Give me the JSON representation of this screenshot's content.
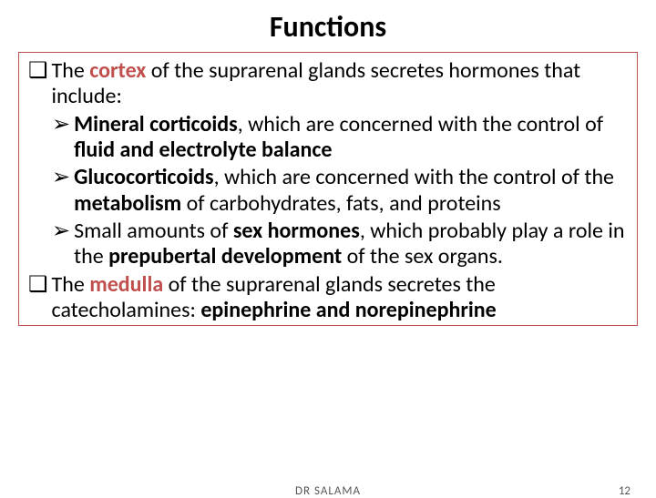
{
  "title": {
    "text": "Functions",
    "fontsize": 32,
    "weight": 700
  },
  "box": {
    "border_color": "#c0504d"
  },
  "body": {
    "fontsize": 24,
    "lineheight": 1.18
  },
  "bullets": {
    "square": "❑",
    "chevron": "➢"
  },
  "colors": {
    "cortex": "#c0504d",
    "medulla": "#c0504d",
    "black": "#000000"
  },
  "p1": {
    "pre": "The ",
    "cortex": "cortex",
    "post": " of the suprarenal glands secretes hormones that include:"
  },
  "s1": {
    "lead": "Mineral corticoids",
    "mid": ", which are concerned with the control of ",
    "bold2": "fluid and electrolyte balance"
  },
  "s2": {
    "lead": "Glucocorticoids",
    "mid": ", which are concerned with the control of the ",
    "bold2": "metabolism",
    "post": " of carbohydrates, fats, and proteins"
  },
  "s3": {
    "pre": "Small amounts of ",
    "bold1": "sex hormones",
    "mid": ", which probably play a role in the ",
    "bold2": "prepubertal development",
    "post": " of the sex organs."
  },
  "p2": {
    "pre": "The ",
    "medulla": "medulla",
    "mid": " of the suprarenal glands secretes the catecholamines: ",
    "bold": "epinephrine and norepinephrine"
  },
  "footer": {
    "author": "DR SALAMA",
    "page": "12"
  }
}
